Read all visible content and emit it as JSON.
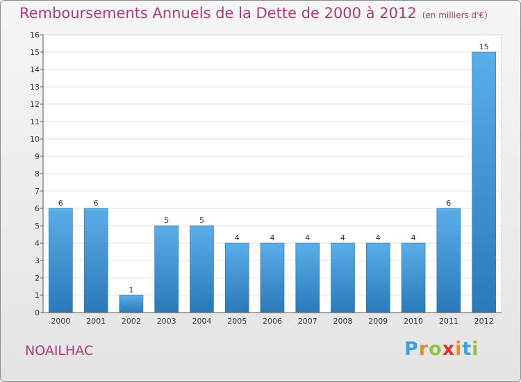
{
  "header": {
    "title": "Remboursements Annuels de la Dette de 2000 à 2012",
    "unit": "(en milliers d'€)"
  },
  "footer": {
    "town": "NOAILHAC",
    "brand": [
      "P",
      "r",
      "o",
      "x",
      "i",
      "t",
      "i"
    ],
    "brand_colors": [
      "#3aa3e0",
      "#f08a1c",
      "#8cc63e",
      "#e8322b",
      "#f08a1c",
      "#3aa3e0",
      "#8cc63e"
    ]
  },
  "chart_data": {
    "type": "bar",
    "categories": [
      "2000",
      "2001",
      "2002",
      "2003",
      "2004",
      "2005",
      "2006",
      "2007",
      "2008",
      "2009",
      "2010",
      "2011",
      "2012"
    ],
    "values": [
      6,
      6,
      1,
      5,
      5,
      4,
      4,
      4,
      4,
      4,
      4,
      6,
      15
    ],
    "title": "Remboursements Annuels de la Dette de 2000 à 2012",
    "xlabel": "",
    "ylabel": "",
    "ylim": [
      0,
      16
    ],
    "yticks": [
      0,
      1,
      2,
      3,
      4,
      5,
      6,
      7,
      8,
      9,
      10,
      11,
      12,
      13,
      14,
      15,
      16
    ],
    "grid": true,
    "bar_color": "#3f97d7"
  }
}
